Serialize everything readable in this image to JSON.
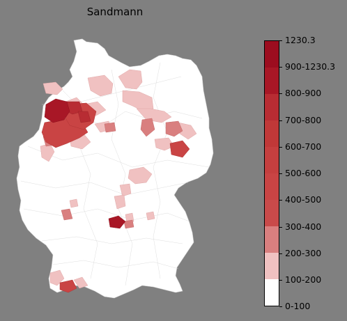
{
  "map": {
    "title": "Sandmann"
  },
  "legend": {
    "levels": [
      {
        "label": "0-100",
        "color": "#ffffff"
      },
      {
        "label": "100-200",
        "color": "#ffffff"
      },
      {
        "label": "200-300",
        "color": "#f0c1c1"
      },
      {
        "label": "300-400",
        "color": "#d97f7f"
      },
      {
        "label": "400-500",
        "color": "#c94a4a"
      },
      {
        "label": "500-600",
        "color": "#c94444"
      },
      {
        "label": "600-700",
        "color": "#c53f3f"
      },
      {
        "label": "700-800",
        "color": "#c03838"
      },
      {
        "label": "800-900",
        "color": "#b82c33"
      },
      {
        "label": "900-1230.3",
        "color": "#a81726"
      },
      {
        "label": "1230.3",
        "color": "#9c0d1f"
      }
    ]
  },
  "colors": {
    "background": "#808080",
    "land": "#ffffff",
    "border": "#cfcfcf"
  }
}
